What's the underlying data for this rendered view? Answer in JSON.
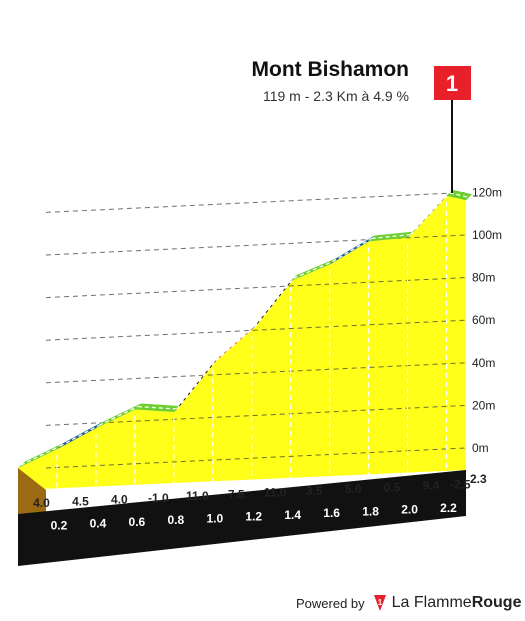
{
  "chart_data": {
    "type": "area",
    "title": "Mont Bishamon",
    "subtitle": "119 m - 2.3 Km à 4.9 %",
    "summit_marker": "1",
    "y_ticks": [
      "0m",
      "20m",
      "40m",
      "60m",
      "80m",
      "100m",
      "120m"
    ],
    "ylim": [
      0,
      120
    ],
    "xlim": [
      0,
      2.3
    ],
    "x_ticks": [
      "0.2",
      "0.4",
      "0.6",
      "0.8",
      "1.0",
      "1.2",
      "1.4",
      "1.6",
      "1.8",
      "2.0",
      "2.2"
    ],
    "total_distance_label": "2.3",
    "segments": [
      {
        "start": 0.0,
        "end": 0.2,
        "gradient": "4.0",
        "color": "#6dcf2e"
      },
      {
        "start": 0.2,
        "end": 0.4,
        "gradient": "4.5",
        "color": "#1f5f8b"
      },
      {
        "start": 0.4,
        "end": 0.6,
        "gradient": "4.0",
        "color": "#6dcf2e"
      },
      {
        "start": 0.6,
        "end": 0.8,
        "gradient": "-1.0",
        "color": "#6dcf2e"
      },
      {
        "start": 0.8,
        "end": 1.0,
        "gradient": "11.0",
        "color": "#111111"
      },
      {
        "start": 1.0,
        "end": 1.2,
        "gradient": "7.5",
        "color": "#e8202a"
      },
      {
        "start": 1.2,
        "end": 1.4,
        "gradient": "11.0",
        "color": "#111111"
      },
      {
        "start": 1.4,
        "end": 1.6,
        "gradient": "3.5",
        "color": "#6dcf2e"
      },
      {
        "start": 1.6,
        "end": 1.8,
        "gradient": "5.0",
        "color": "#1f5f8b"
      },
      {
        "start": 1.8,
        "end": 2.0,
        "gradient": "0.5",
        "color": "#6dcf2e"
      },
      {
        "start": 2.0,
        "end": 2.2,
        "gradient": "9.4",
        "color": "#111111"
      },
      {
        "start": 2.2,
        "end": 2.3,
        "gradient": "-2.5",
        "color": "#6dcf2e"
      }
    ],
    "colors": {
      "fill": "#ffff1a",
      "base_top": "#111111",
      "base_side": "#9b6a12"
    }
  },
  "footer": {
    "powered_by": "Powered by",
    "brand_a": "La Flamme",
    "brand_b": "Rouge",
    "logo_mark": "1"
  }
}
